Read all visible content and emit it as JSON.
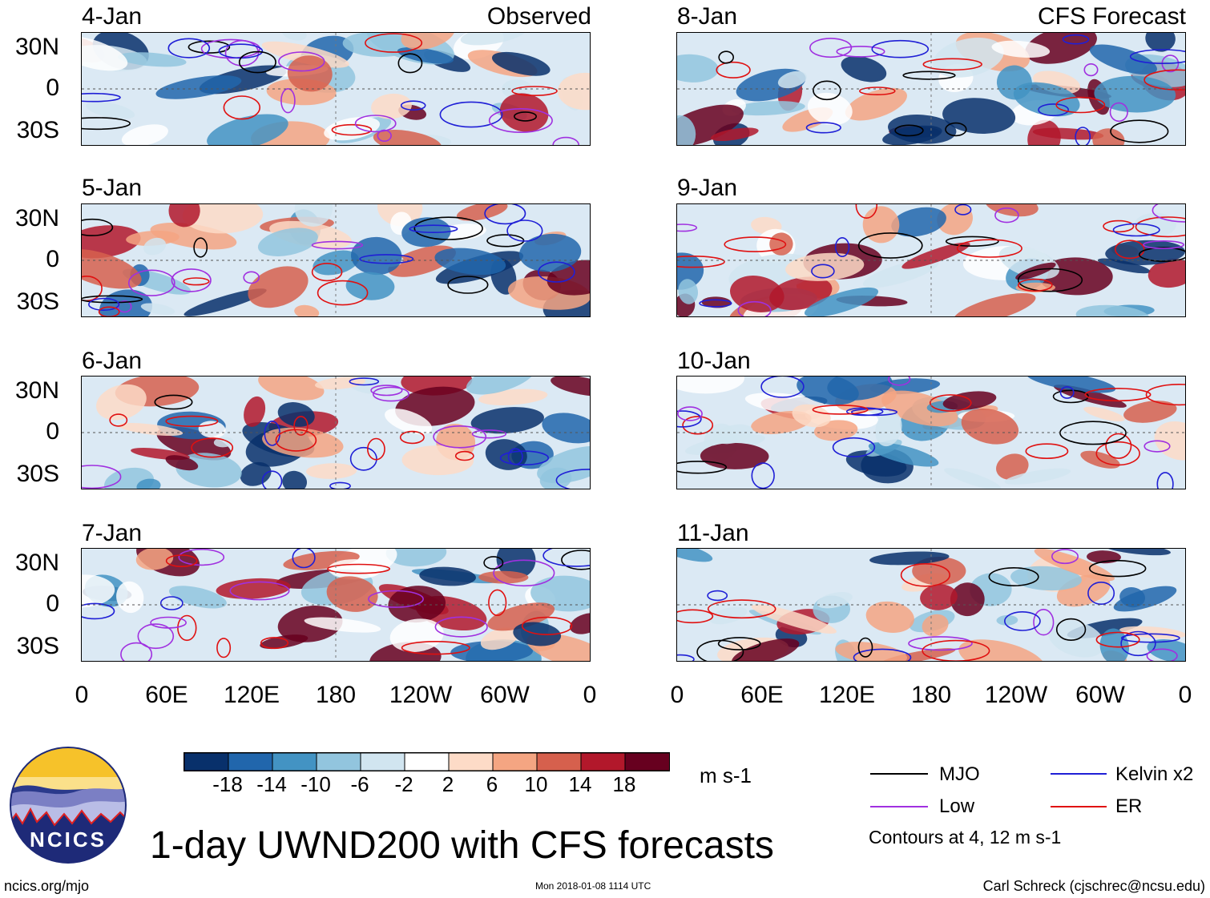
{
  "columns": {
    "left_title": "Observed",
    "right_title": "CFS Forecast"
  },
  "panels": {
    "left": [
      "4-Jan",
      "5-Jan",
      "6-Jan",
      "7-Jan"
    ],
    "right": [
      "8-Jan",
      "9-Jan",
      "10-Jan",
      "11-Jan"
    ]
  },
  "lat_labels": [
    "30N",
    "0",
    "30S"
  ],
  "lon_labels": [
    "0",
    "60E",
    "120E",
    "180",
    "120W",
    "60W",
    "0"
  ],
  "colorbar": {
    "unit": "m s-1",
    "labels": [
      "-18",
      "-14",
      "-10",
      "-6",
      "-2",
      "2",
      "6",
      "10",
      "14",
      "18"
    ],
    "colors": [
      "#08306b",
      "#2166ac",
      "#4393c3",
      "#92c5de",
      "#d1e5f0",
      "#ffffff",
      "#fddbc7",
      "#f4a582",
      "#d6604d",
      "#b2182b",
      "#67001f"
    ]
  },
  "legend": {
    "items": [
      {
        "label": "MJO",
        "color": "#000000"
      },
      {
        "label": "Kelvin x2",
        "color": "#1f1fd6"
      },
      {
        "label": "Low",
        "color": "#a030e0"
      },
      {
        "label": "ER",
        "color": "#e01010"
      }
    ],
    "note": "Contours at 4, 12 m s-1"
  },
  "title": "1-day UWND200 with CFS forecasts",
  "logo_text": "NCICS",
  "footer": {
    "website": "ncics.org/mjo",
    "timestamp": "Mon 2018-01-08 1114 UTC",
    "credit": "Carl Schreck (cjschrec@ncsu.edu)"
  }
}
